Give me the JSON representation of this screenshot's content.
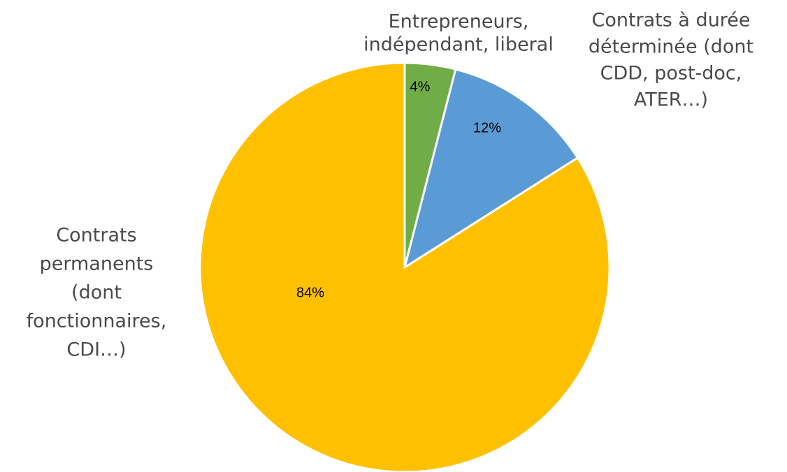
{
  "chart_data": {
    "type": "pie",
    "title": "",
    "start_angle_deg": 0,
    "direction": "clockwise",
    "slices": [
      {
        "label_lines": [
          "Entrepreneurs,",
          "indépendant, liberal"
        ],
        "value": 4,
        "percent_label": "4%",
        "color": "#70AD47"
      },
      {
        "label_lines": [
          "Contrats à durée",
          "déterminée (dont",
          "CDD, post-doc,",
          "ATER…)"
        ],
        "value": 12,
        "percent_label": "12%",
        "color": "#5B9BD5"
      },
      {
        "label_lines": [
          "Contrats",
          "permanents",
          "(dont",
          "fonctionnaires,",
          "CDI…)"
        ],
        "value": 84,
        "percent_label": "84%",
        "color": "#FFC000"
      }
    ],
    "legend": "none"
  }
}
